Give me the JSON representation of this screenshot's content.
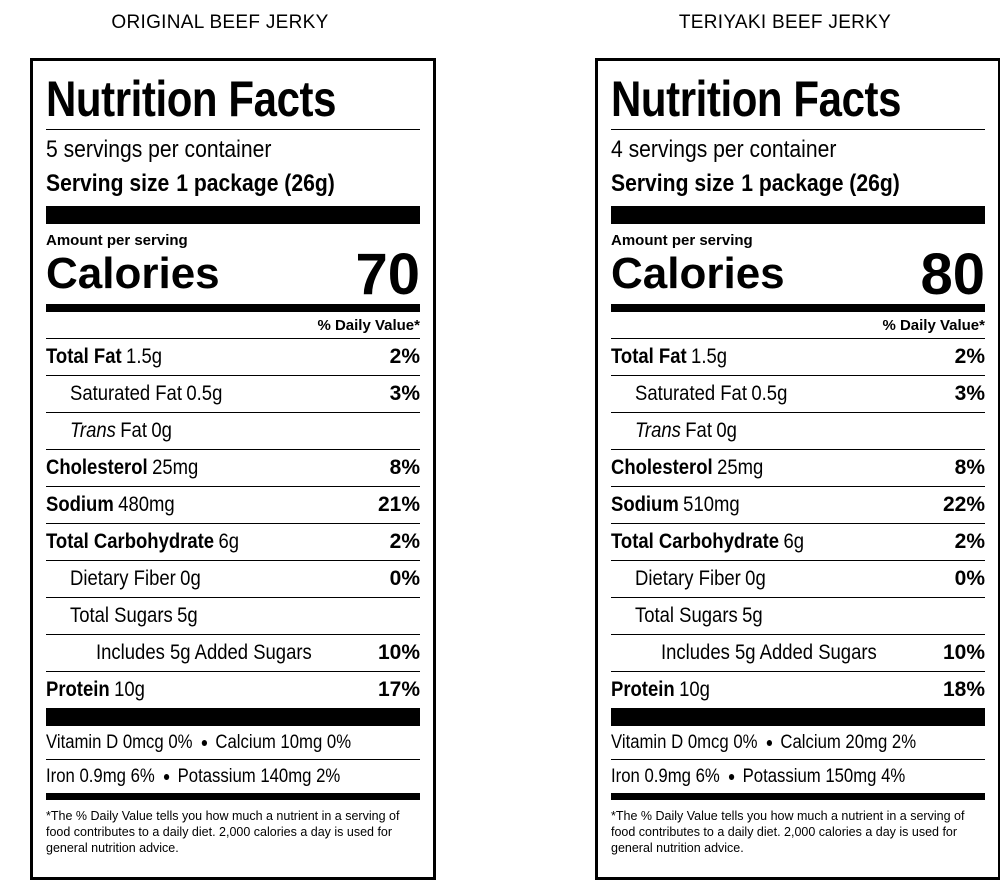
{
  "labels": [
    {
      "heading": "ORIGINAL BEEF JERKY",
      "title": "Nutrition Facts",
      "servings": "5 servings per container",
      "serving_size_label": "Serving size",
      "serving_size": "1 package (26g)",
      "amount_per_serving": "Amount per serving",
      "calories_label": "Calories",
      "calories": 70,
      "daily_value_header": "% Daily Value*",
      "rows": [
        {
          "name": "Total Fat",
          "amount": "1.5g",
          "dv": "2%"
        },
        {
          "name": "Saturated Fat",
          "amount": "0.5g",
          "dv": "3%"
        },
        {
          "name_italic": "Trans",
          "name": "Fat",
          "amount": "0g"
        },
        {
          "name": "Cholesterol",
          "amount": "25mg",
          "dv": "8%"
        },
        {
          "name": "Sodium",
          "amount": "480mg",
          "dv": "21%"
        },
        {
          "name": "Total Carbohydrate",
          "amount": "6g",
          "dv": "2%"
        },
        {
          "name": "Dietary Fiber",
          "amount": "0g",
          "dv": "0%"
        },
        {
          "name": "Total Sugars",
          "amount": "5g"
        },
        {
          "name": "Includes 5g Added Sugars",
          "dv": "10%"
        },
        {
          "name": "Protein",
          "amount": "10g",
          "dv": "17%"
        }
      ],
      "micronutrients": [
        [
          "Vitamin D 0mcg 0%",
          "Calcium 10mg 0%"
        ],
        [
          "Iron 0.9mg 6%",
          "Potassium 140mg 2%"
        ]
      ],
      "footnote": "*The % Daily Value tells you how much a nutrient in a serving of food contributes to a daily diet. 2,000 calories a day is used for general nutrition advice."
    },
    {
      "heading": "TERIYAKI BEEF JERKY",
      "title": "Nutrition Facts",
      "servings": "4 servings per container",
      "serving_size_label": "Serving size",
      "serving_size": "1 package (26g)",
      "amount_per_serving": "Amount per serving",
      "calories_label": "Calories",
      "calories": 80,
      "daily_value_header": "% Daily Value*",
      "rows": [
        {
          "name": "Total Fat",
          "amount": "1.5g",
          "dv": "2%"
        },
        {
          "name": "Saturated Fat",
          "amount": "0.5g",
          "dv": "3%"
        },
        {
          "name_italic": "Trans",
          "name": "Fat",
          "amount": "0g"
        },
        {
          "name": "Cholesterol",
          "amount": "25mg",
          "dv": "8%"
        },
        {
          "name": "Sodium",
          "amount": "510mg",
          "dv": "22%"
        },
        {
          "name": "Total Carbohydrate",
          "amount": "6g",
          "dv": "2%"
        },
        {
          "name": "Dietary Fiber",
          "amount": "0g",
          "dv": "0%"
        },
        {
          "name": "Total Sugars",
          "amount": "5g"
        },
        {
          "name": "Includes 5g Added Sugars",
          "dv": "10%"
        },
        {
          "name": "Protein",
          "amount": "10g",
          "dv": "18%"
        }
      ],
      "micronutrients": [
        [
          "Vitamin D 0mcg 0%",
          "Calcium 20mg 2%"
        ],
        [
          "Iron 0.9mg 6%",
          "Potassium 150mg 4%"
        ]
      ],
      "footnote": "*The % Daily Value tells you how much a nutrient in a serving of food contributes to a daily diet. 2,000 calories a day is used for general nutrition advice."
    }
  ]
}
